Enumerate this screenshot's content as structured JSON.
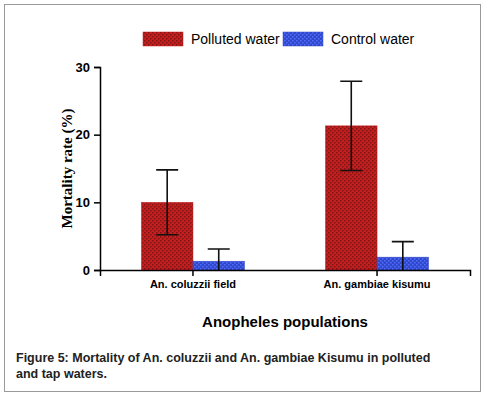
{
  "chart_data": {
    "type": "bar",
    "categories": [
      "An. coluzzii field",
      "An. gambiae kisumu"
    ],
    "series": [
      {
        "name": "Polluted water",
        "color": "#c41e1e",
        "values": [
          10,
          21.3
        ],
        "errors": [
          4.8,
          6.6
        ]
      },
      {
        "name": "Control water",
        "color": "#3348c8",
        "values": [
          1.3,
          1.9
        ],
        "errors": [
          1.8,
          2.3
        ]
      }
    ],
    "y_label": "Mortality rate (%)",
    "x_label": "Anopheles populations",
    "caption": "Figure 5: Mortality of An. coluzzii and An. gambiae Kisumu in polluted and tap waters.",
    "ylim": [
      0,
      30
    ],
    "yticks": [
      0,
      10,
      20,
      30
    ],
    "grid": false,
    "legend": "top"
  }
}
